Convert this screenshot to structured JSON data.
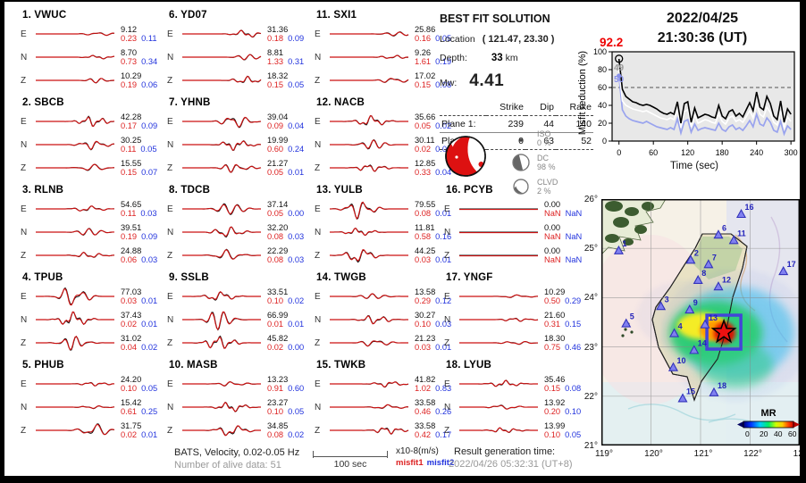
{
  "header": {
    "date": "2022/04/25",
    "time": "21:30:36  (UT)"
  },
  "solution": {
    "title": "BEST FIT SOLUTION",
    "location_label": "Location",
    "location_value": "( 121.47,  23.30 )",
    "depth_label": "Depth:",
    "depth_value": "33",
    "depth_unit": "km",
    "mw_label": "Mw:",
    "mw_value": "4.41",
    "table": {
      "col_headers": [
        "Strike",
        "Dip",
        "Rake"
      ],
      "rows": [
        {
          "label": "Plane 1:",
          "strike": "239",
          "dip": "44",
          "rake": "140"
        },
        {
          "label": "Plane 2:",
          "strike": "0",
          "dip": "63",
          "rake": "52"
        }
      ]
    },
    "decomposition": [
      {
        "name": "ISO",
        "pct": "0 %"
      },
      {
        "name": "DC",
        "pct": "98 %"
      },
      {
        "name": "CLVD",
        "pct": "2 %"
      }
    ]
  },
  "misfit_panel": {
    "peak_value": "92.2",
    "label_black_count": "49",
    "label_blue_count": "50",
    "ylabel": "Misfit reduction (%)",
    "xlabel": "Time (sec)"
  },
  "chart_data": {
    "type": "line",
    "title": "Misfit reduction vs time",
    "xlabel": "Time (sec)",
    "ylabel": "Misfit reduction (%)",
    "xlim": [
      -12,
      306
    ],
    "ylim": [
      0,
      100
    ],
    "xticks": [
      0,
      60,
      120,
      180,
      240,
      300
    ],
    "yticks": [
      0,
      20,
      40,
      60,
      80,
      100
    ],
    "dashed_line_y": 60,
    "x_step": 6,
    "peak": {
      "t": 0,
      "value": 92.2
    },
    "legend_position": "none",
    "series": [
      {
        "name": "misfit-reduction-best",
        "color": "#000000",
        "values": [
          92,
          58,
          50,
          47,
          44,
          43,
          41,
          40,
          41,
          40,
          38,
          36,
          33,
          31,
          30,
          32,
          30,
          44,
          20,
          42,
          44,
          21,
          37,
          26,
          28,
          30,
          29,
          27,
          26,
          40,
          28,
          25,
          33,
          35,
          28,
          31,
          27,
          35,
          43,
          34,
          55,
          38,
          35,
          50,
          42,
          28,
          24,
          45,
          21,
          36,
          30
        ]
      },
      {
        "name": "misfit-reduction-white",
        "color": "#ffffff",
        "values": [
          80,
          45,
          40,
          38,
          36,
          35,
          34,
          33,
          34,
          32,
          30,
          28,
          26,
          25,
          24,
          26,
          24,
          36,
          15,
          33,
          35,
          16,
          29,
          20,
          22,
          24,
          23,
          21,
          20,
          30,
          22,
          19,
          26,
          28,
          22,
          24,
          21,
          27,
          34,
          26,
          42,
          30,
          27,
          38,
          32,
          21,
          18,
          34,
          15,
          27,
          22
        ]
      },
      {
        "name": "misfit-reduction-blue",
        "color": "#99a3ee",
        "values": [
          73,
          35,
          28,
          25,
          23,
          22,
          21,
          20,
          22,
          20,
          18,
          16,
          15,
          14,
          13,
          15,
          13,
          25,
          9,
          22,
          24,
          10,
          19,
          12,
          14,
          15,
          14,
          13,
          12,
          20,
          13,
          11,
          16,
          18,
          13,
          15,
          12,
          17,
          23,
          16,
          30,
          19,
          17,
          26,
          21,
          12,
          10,
          22,
          8,
          17,
          13
        ]
      }
    ]
  },
  "waveforms": {
    "channel_labels": [
      "E",
      "N",
      "Z"
    ],
    "stations": [
      {
        "name": "VWUC",
        "c": 0.78,
        "channels": [
          {
            "amp": "9.12",
            "m1": "0.23",
            "m2": "0.11",
            "w": 0.5
          },
          {
            "amp": "8.70",
            "m1": "0.73",
            "m2": "0.34",
            "w": 0.5
          },
          {
            "amp": "10.29",
            "m1": "0.19",
            "m2": "0.06",
            "w": 0.6
          }
        ]
      },
      {
        "name": "SBCB",
        "c": 0.7,
        "channels": [
          {
            "amp": "42.28",
            "m1": "0.17",
            "m2": "0.09",
            "w": 1.4
          },
          {
            "amp": "30.25",
            "m1": "0.11",
            "m2": "0.05",
            "w": 1.2
          },
          {
            "amp": "15.55",
            "m1": "0.15",
            "m2": "0.07",
            "w": 0.9
          }
        ]
      },
      {
        "name": "RLNB",
        "c": 0.65,
        "channels": [
          {
            "amp": "54.65",
            "m1": "0.11",
            "m2": "0.03",
            "w": 0.8
          },
          {
            "amp": "39.51",
            "m1": "0.19",
            "m2": "0.09",
            "w": 0.9
          },
          {
            "amp": "24.88",
            "m1": "0.06",
            "m2": "0.03",
            "w": 0.8
          }
        ]
      },
      {
        "name": "TPUB",
        "c": 0.45,
        "channels": [
          {
            "amp": "77.03",
            "m1": "0.03",
            "m2": "0.01",
            "w": 2.6
          },
          {
            "amp": "37.43",
            "m1": "0.02",
            "m2": "0.01",
            "w": 2.0
          },
          {
            "amp": "31.02",
            "m1": "0.04",
            "m2": "0.02",
            "w": 1.8
          }
        ]
      },
      {
        "name": "PHUB",
        "c": 0.72,
        "channels": [
          {
            "amp": "24.20",
            "m1": "0.10",
            "m2": "0.05",
            "w": 0.5
          },
          {
            "amp": "15.42",
            "m1": "0.61",
            "m2": "0.25",
            "w": 0.4
          },
          {
            "amp": "31.75",
            "m1": "0.02",
            "m2": "0.01",
            "w": 1.9
          }
        ]
      },
      {
        "name": "YD07",
        "c": 0.8,
        "channels": [
          {
            "amp": "31.36",
            "m1": "0.18",
            "m2": "0.09",
            "w": 1.0
          },
          {
            "amp": "8.81",
            "m1": "1.33",
            "m2": "0.31",
            "w": 0.7
          },
          {
            "amp": "18.32",
            "m1": "0.15",
            "m2": "0.05",
            "w": 1.0
          }
        ]
      },
      {
        "name": "YHNB",
        "c": 0.65,
        "channels": [
          {
            "amp": "39.04",
            "m1": "0.09",
            "m2": "0.04",
            "w": 1.8
          },
          {
            "amp": "19.99",
            "m1": "0.60",
            "m2": "0.24",
            "w": 1.4
          },
          {
            "amp": "21.27",
            "m1": "0.05",
            "m2": "0.01",
            "w": 1.2
          }
        ]
      },
      {
        "name": "TDCB",
        "c": 0.55,
        "channels": [
          {
            "amp": "37.14",
            "m1": "0.05",
            "m2": "0.00",
            "w": 1.9
          },
          {
            "amp": "32.20",
            "m1": "0.08",
            "m2": "0.03",
            "w": 1.5
          },
          {
            "amp": "22.29",
            "m1": "0.08",
            "m2": "0.03",
            "w": 1.4
          }
        ]
      },
      {
        "name": "SSLB",
        "c": 0.45,
        "channels": [
          {
            "amp": "33.51",
            "m1": "0.10",
            "m2": "0.02",
            "w": 1.3
          },
          {
            "amp": "66.99",
            "m1": "0.01",
            "m2": "0.01",
            "w": 2.4
          },
          {
            "amp": "45.82",
            "m1": "0.02",
            "m2": "0.00",
            "w": 1.9
          }
        ]
      },
      {
        "name": "MASB",
        "c": 0.6,
        "channels": [
          {
            "amp": "13.23",
            "m1": "0.91",
            "m2": "0.60",
            "w": 0.6
          },
          {
            "amp": "23.27",
            "m1": "0.10",
            "m2": "0.05",
            "w": 1.3
          },
          {
            "amp": "34.85",
            "m1": "0.08",
            "m2": "0.02",
            "w": 1.6
          }
        ]
      },
      {
        "name": "SXI1",
        "c": 0.8,
        "channels": [
          {
            "amp": "25.86",
            "m1": "0.16",
            "m2": "0.05",
            "w": 0.8
          },
          {
            "amp": "9.26",
            "m1": "1.61",
            "m2": "0.19",
            "w": 0.5
          },
          {
            "amp": "17.02",
            "m1": "0.15",
            "m2": "0.08",
            "w": 0.8
          }
        ]
      },
      {
        "name": "NACB",
        "c": 0.5,
        "channels": [
          {
            "amp": "35.66",
            "m1": "0.05",
            "m2": "0.02",
            "w": 1.5
          },
          {
            "amp": "30.11",
            "m1": "0.02",
            "m2": "0.01",
            "w": 1.3
          },
          {
            "amp": "12.85",
            "m1": "0.33",
            "m2": "0.04",
            "w": 1.0
          }
        ]
      },
      {
        "name": "YULB",
        "c": 0.35,
        "channels": [
          {
            "amp": "79.55",
            "m1": "0.08",
            "m2": "0.01",
            "w": 2.4
          },
          {
            "amp": "11.81",
            "m1": "0.58",
            "m2": "0.16",
            "w": 1.0
          },
          {
            "amp": "44.25",
            "m1": "0.03",
            "m2": "0.01",
            "w": 2.0
          }
        ]
      },
      {
        "name": "TWGB",
        "c": 0.55,
        "channels": [
          {
            "amp": "13.58",
            "m1": "0.29",
            "m2": "0.12",
            "w": 0.7
          },
          {
            "amp": "30.27",
            "m1": "0.10",
            "m2": "0.03",
            "w": 1.2
          },
          {
            "amp": "21.23",
            "m1": "0.03",
            "m2": "0.01",
            "w": 1.0
          }
        ]
      },
      {
        "name": "TWKB",
        "c": 0.72,
        "channels": [
          {
            "amp": "41.82",
            "m1": "1.02",
            "m2": "0.83",
            "w": 0.8
          },
          {
            "amp": "33.58",
            "m1": "0.46",
            "m2": "0.26",
            "w": 0.6
          },
          {
            "amp": "33.58",
            "m1": "0.42",
            "m2": "0.17",
            "w": 1.0
          }
        ]
      },
      {
        "name": "PCYB",
        "c": 0.5,
        "channels": [
          {
            "amp": "0.00",
            "m1": "NaN",
            "m2": "NaN",
            "w": 0
          },
          {
            "amp": "0.00",
            "m1": "NaN",
            "m2": "NaN",
            "w": 0
          },
          {
            "amp": "0.00",
            "m1": "NaN",
            "m2": "NaN",
            "w": 0
          }
        ]
      },
      {
        "name": "YNGF",
        "c": 0.7,
        "channels": [
          {
            "amp": "10.29",
            "m1": "0.50",
            "m2": "0.29",
            "w": 0.4
          },
          {
            "amp": "21.60",
            "m1": "0.31",
            "m2": "0.15",
            "w": 0.5
          },
          {
            "amp": "18.30",
            "m1": "0.75",
            "m2": "0.46",
            "w": 0.5
          }
        ]
      },
      {
        "name": "LYUB",
        "c": 0.55,
        "channels": [
          {
            "amp": "35.46",
            "m1": "0.15",
            "m2": "0.08",
            "w": 0.9
          },
          {
            "amp": "13.92",
            "m1": "0.20",
            "m2": "0.10",
            "w": 0.6
          },
          {
            "amp": "13.99",
            "m1": "0.10",
            "m2": "0.05",
            "w": 0.7
          }
        ]
      }
    ]
  },
  "footer": {
    "filter_line": "BATS, Velocity, 0.02-0.05 Hz",
    "alive_line": "Number of alive data: 51",
    "scalebar_label": "100 sec",
    "units_label": "x10-8(m/s)",
    "misfit1_label": "misfit1",
    "misfit2_label": "misfit2",
    "result_label": "Result generation time:",
    "result_time": "2022/04/26 05:32:31 (UT+8)"
  },
  "map": {
    "lat_labels": [
      "26°",
      "25°",
      "24°",
      "23°",
      "22°",
      "21°"
    ],
    "lon_labels": [
      "119°",
      "120°",
      "121°",
      "122°",
      "123°"
    ],
    "colorbar": {
      "title": "MR",
      "ticks": [
        "0",
        "20",
        "40",
        "60"
      ]
    },
    "epicenter": {
      "lon": 121.47,
      "lat": 23.3
    },
    "stations": [
      {
        "id": 1,
        "lon": 119.35,
        "lat": 24.95
      },
      {
        "id": 2,
        "lon": 120.8,
        "lat": 24.76
      },
      {
        "id": 3,
        "lon": 120.2,
        "lat": 23.82
      },
      {
        "id": 4,
        "lon": 120.47,
        "lat": 23.27
      },
      {
        "id": 5,
        "lon": 119.5,
        "lat": 23.47
      },
      {
        "id": 6,
        "lon": 121.36,
        "lat": 25.27
      },
      {
        "id": 7,
        "lon": 121.16,
        "lat": 24.67
      },
      {
        "id": 8,
        "lon": 120.95,
        "lat": 24.35
      },
      {
        "id": 9,
        "lon": 120.78,
        "lat": 23.75
      },
      {
        "id": 10,
        "lon": 120.45,
        "lat": 22.58
      },
      {
        "id": 11,
        "lon": 121.67,
        "lat": 25.16
      },
      {
        "id": 12,
        "lon": 121.36,
        "lat": 24.22
      },
      {
        "id": 13,
        "lon": 121.09,
        "lat": 23.45
      },
      {
        "id": 14,
        "lon": 120.87,
        "lat": 22.93
      },
      {
        "id": 15,
        "lon": 120.64,
        "lat": 21.95
      },
      {
        "id": 16,
        "lon": 121.82,
        "lat": 25.69
      },
      {
        "id": 17,
        "lon": 122.67,
        "lat": 24.53
      },
      {
        "id": 18,
        "lon": 121.27,
        "lat": 22.07
      }
    ]
  }
}
